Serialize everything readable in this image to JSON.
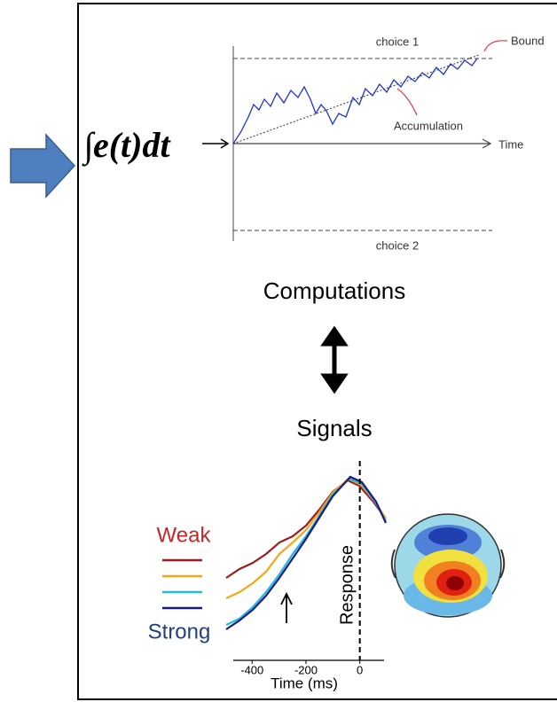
{
  "equation": "∫e(t)dt",
  "ddm": {
    "choice1": "choice 1",
    "choice2": "choice 2",
    "bound": "Bound",
    "accumulation": "Accumulation",
    "time_label": "Time"
  },
  "computations": "Computations",
  "signals": "Signals",
  "erp": {
    "legend_top": "Weak",
    "legend_bottom": "Strong",
    "response": "Response",
    "xlabel": "Time (ms)",
    "xticks": [
      -400,
      -200,
      0
    ],
    "xlim": [
      -470,
      90
    ]
  }
}
